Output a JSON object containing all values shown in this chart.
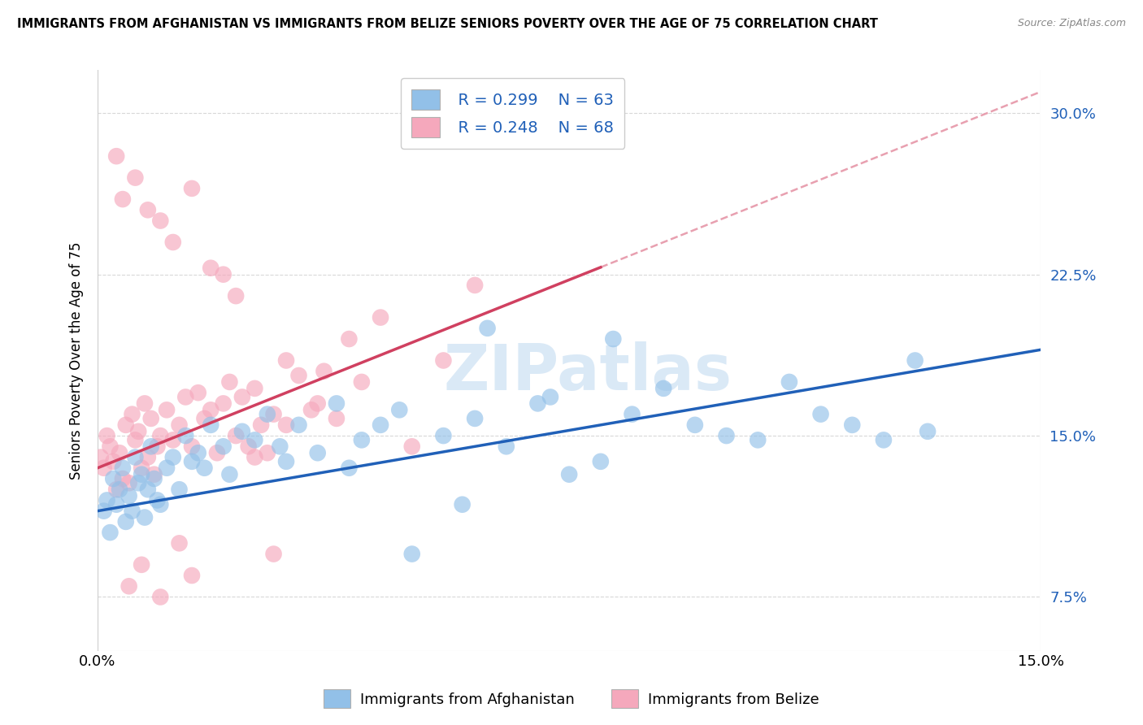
{
  "title": "IMMIGRANTS FROM AFGHANISTAN VS IMMIGRANTS FROM BELIZE SENIORS POVERTY OVER THE AGE OF 75 CORRELATION CHART",
  "source": "Source: ZipAtlas.com",
  "ylabel": "Seniors Poverty Over the Age of 75",
  "xlim": [
    0.0,
    15.0
  ],
  "ylim": [
    5.0,
    32.0
  ],
  "yticks": [
    7.5,
    15.0,
    22.5,
    30.0
  ],
  "ytick_labels": [
    "7.5%",
    "15.0%",
    "22.5%",
    "30.0%"
  ],
  "watermark": "ZIPatlas",
  "legend_blue_r": "R = 0.299",
  "legend_blue_n": "N = 63",
  "legend_pink_r": "R = 0.248",
  "legend_pink_n": "N = 68",
  "legend_label_blue": "Immigrants from Afghanistan",
  "legend_label_pink": "Immigrants from Belize",
  "blue_color": "#92c0e8",
  "pink_color": "#f5a8bc",
  "blue_line_color": "#2060b8",
  "pink_line_color": "#d04060",
  "pink_dash_color": "#e8a0b0",
  "afghanistan_x": [
    0.1,
    0.15,
    0.2,
    0.25,
    0.3,
    0.35,
    0.4,
    0.45,
    0.5,
    0.55,
    0.6,
    0.65,
    0.7,
    0.75,
    0.8,
    0.85,
    0.9,
    0.95,
    1.0,
    1.1,
    1.2,
    1.3,
    1.4,
    1.5,
    1.6,
    1.7,
    1.8,
    2.0,
    2.1,
    2.3,
    2.5,
    2.7,
    2.9,
    3.0,
    3.2,
    3.5,
    3.8,
    4.0,
    4.2,
    4.5,
    4.8,
    5.0,
    5.5,
    5.8,
    6.0,
    6.5,
    7.0,
    7.5,
    8.0,
    8.5,
    9.0,
    9.5,
    10.0,
    10.5,
    11.0,
    11.5,
    12.0,
    12.5,
    13.0,
    13.2,
    8.2,
    6.2,
    7.2
  ],
  "afghanistan_y": [
    11.5,
    12.0,
    10.5,
    13.0,
    11.8,
    12.5,
    13.5,
    11.0,
    12.2,
    11.5,
    14.0,
    12.8,
    13.2,
    11.2,
    12.5,
    14.5,
    13.0,
    12.0,
    11.8,
    13.5,
    14.0,
    12.5,
    15.0,
    13.8,
    14.2,
    13.5,
    15.5,
    14.5,
    13.2,
    15.2,
    14.8,
    16.0,
    14.5,
    13.8,
    15.5,
    14.2,
    16.5,
    13.5,
    14.8,
    15.5,
    16.2,
    9.5,
    15.0,
    11.8,
    15.8,
    14.5,
    16.5,
    13.2,
    13.8,
    16.0,
    17.2,
    15.5,
    15.0,
    14.8,
    17.5,
    16.0,
    15.5,
    14.8,
    18.5,
    15.2,
    19.5,
    20.0,
    16.8
  ],
  "belize_x": [
    0.05,
    0.1,
    0.15,
    0.2,
    0.25,
    0.3,
    0.35,
    0.4,
    0.45,
    0.5,
    0.55,
    0.6,
    0.65,
    0.7,
    0.75,
    0.8,
    0.85,
    0.9,
    0.95,
    1.0,
    1.1,
    1.2,
    1.3,
    1.4,
    1.5,
    1.6,
    1.7,
    1.8,
    1.9,
    2.0,
    2.1,
    2.2,
    2.3,
    2.4,
    2.5,
    2.6,
    2.7,
    2.8,
    3.0,
    3.2,
    3.4,
    3.6,
    3.8,
    4.0,
    4.2,
    4.5,
    5.0,
    5.5,
    6.0,
    1.0,
    1.5,
    2.0,
    2.5,
    0.3,
    0.6,
    0.4,
    0.8,
    1.2,
    1.8,
    2.2,
    3.5,
    3.0,
    2.8,
    1.5,
    0.7,
    0.5,
    1.0,
    1.3
  ],
  "belize_y": [
    14.0,
    13.5,
    15.0,
    14.5,
    13.8,
    12.5,
    14.2,
    13.0,
    15.5,
    12.8,
    16.0,
    14.8,
    15.2,
    13.5,
    16.5,
    14.0,
    15.8,
    13.2,
    14.5,
    15.0,
    16.2,
    14.8,
    15.5,
    16.8,
    14.5,
    17.0,
    15.8,
    16.2,
    14.2,
    16.5,
    17.5,
    15.0,
    16.8,
    14.5,
    17.2,
    15.5,
    14.2,
    16.0,
    15.5,
    17.8,
    16.2,
    18.0,
    15.8,
    19.5,
    17.5,
    20.5,
    14.5,
    18.5,
    22.0,
    25.0,
    26.5,
    22.5,
    14.0,
    28.0,
    27.0,
    26.0,
    25.5,
    24.0,
    22.8,
    21.5,
    16.5,
    18.5,
    9.5,
    8.5,
    9.0,
    8.0,
    7.5,
    10.0
  ]
}
